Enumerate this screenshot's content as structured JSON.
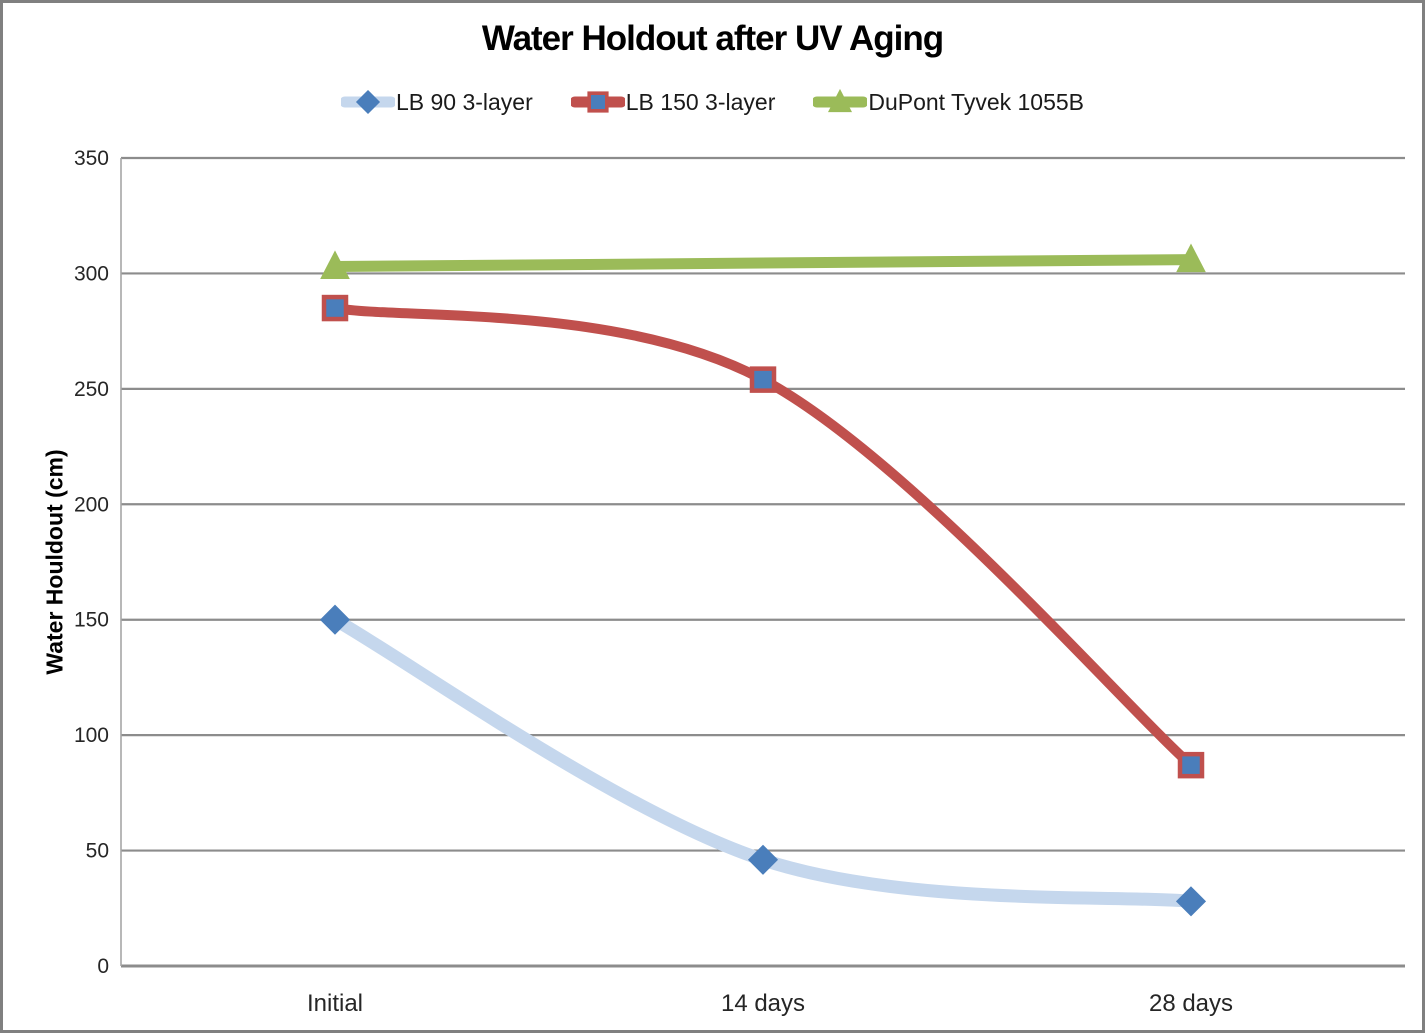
{
  "frame": {
    "border_color": "#808080",
    "background_color": "#FFFFFF"
  },
  "chart_data": {
    "type": "line",
    "title": "Water Holdout after UV Aging",
    "xlabel": "",
    "ylabel": "Water Houldout (cm)",
    "categories": [
      "Initial",
      "14 days",
      "28 days"
    ],
    "series": [
      {
        "name": "LB 90 3-layer",
        "values": [
          150,
          46,
          28
        ],
        "smooth": true,
        "line_color": "#C5D7ED",
        "line_width": 13,
        "marker": "diamond",
        "marker_fill": "#4A7EBB",
        "marker_border": "#4A7EBB"
      },
      {
        "name": "LB 150 3-layer",
        "values": [
          285,
          254,
          87
        ],
        "smooth": true,
        "line_color": "#C0504D",
        "line_width": 10,
        "marker": "square",
        "marker_fill": "#4A7EBB",
        "marker_border": "#C0504D"
      },
      {
        "name": "DuPont Tyvek 1055B",
        "values": [
          303,
          null,
          306
        ],
        "smooth": false,
        "line_color": "#9BBB59",
        "line_width": 11,
        "marker": "triangle",
        "marker_fill": "#9BBB59",
        "marker_border": "#9BBB59"
      }
    ],
    "ylim": [
      0,
      350
    ],
    "ytick_step": 50,
    "grid": true,
    "legend_position": "top",
    "axis_color": "#A6A6A6",
    "grid_color": "#8C8C8C",
    "tick_text_color": "#262626"
  }
}
